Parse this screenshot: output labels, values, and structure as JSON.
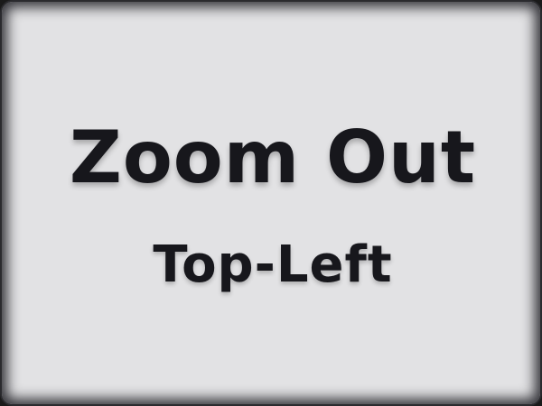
{
  "panel": {
    "title": "Zoom Out",
    "subtitle": "Top-Left"
  },
  "colors": {
    "background": "#e2e2e4",
    "text": "#17171c",
    "border": "#2a2a2e"
  }
}
